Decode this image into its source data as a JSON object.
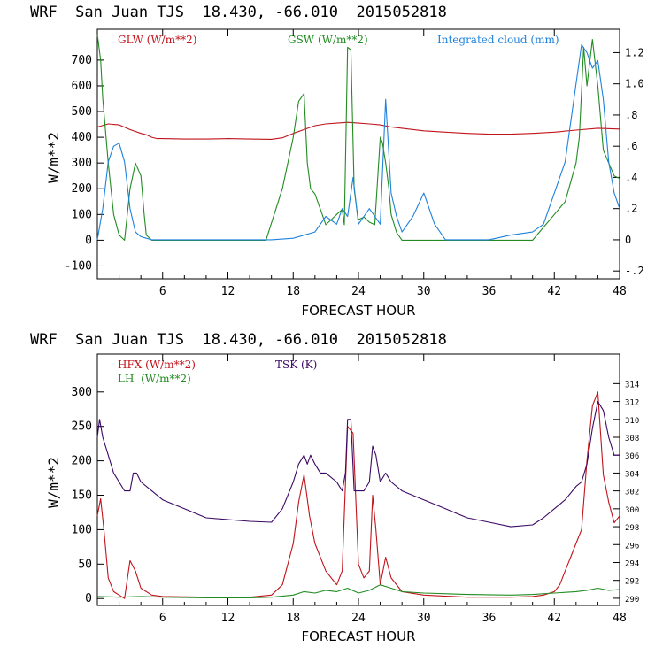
{
  "chart_data": [
    {
      "type": "line",
      "title": "WRF  San Juan TJS  18.430, -66.010  2015052818",
      "xlabel": "FORECAST HOUR",
      "ylabel": "W/m**2",
      "y2label": "Integrated cloud (mm)",
      "xlim": [
        0,
        48
      ],
      "ylim": [
        -150,
        820
      ],
      "y2lim": [
        -0.25,
        1.35
      ],
      "xticks": [
        "6",
        "12",
        "18",
        "24",
        "30",
        "36",
        "42",
        "48"
      ],
      "yticks": [
        "-100",
        "0",
        "100",
        "200",
        "300",
        "400",
        "500",
        "600",
        "700"
      ],
      "y2ticks": [
        "-.2",
        "0",
        ".2",
        ".4",
        ".6",
        ".8",
        "1.0",
        "1.2"
      ],
      "colors": {
        "glw": "#c0141c",
        "gsw": "#228B22",
        "cloud": "#1e82dc",
        "frame": "#000000"
      },
      "series": [
        {
          "name": "GLW (W/m**2)",
          "axis": "left",
          "x": [
            0,
            1,
            2,
            3,
            4,
            4.5,
            5,
            5.5,
            6,
            8,
            10,
            12,
            14,
            16,
            17,
            18,
            19,
            20,
            21,
            22,
            23,
            24,
            25,
            26,
            27,
            28,
            30,
            32,
            34,
            36,
            38,
            40,
            42,
            44,
            46,
            48
          ],
          "values": [
            440,
            452,
            448,
            430,
            415,
            410,
            400,
            395,
            395,
            393,
            393,
            395,
            393,
            392,
            398,
            415,
            430,
            445,
            452,
            455,
            458,
            455,
            452,
            448,
            440,
            435,
            425,
            420,
            415,
            412,
            412,
            415,
            420,
            428,
            435,
            432
          ]
        },
        {
          "name": "GSW (W/m**2)",
          "axis": "left",
          "x": [
            0,
            0.3,
            0.5,
            1,
            1.5,
            2,
            2.5,
            3,
            3.5,
            4,
            4.3,
            4.5,
            5,
            6,
            10,
            14,
            15.5,
            17,
            18,
            18.5,
            19,
            19.3,
            19.6,
            20,
            20.5,
            21,
            21.5,
            22,
            22.5,
            22.7,
            23,
            23.3,
            23.6,
            23.9,
            24,
            24.5,
            25,
            25.5,
            26,
            26.2,
            26.5,
            26.8,
            27,
            27.5,
            28,
            30,
            34,
            38,
            40,
            41,
            42,
            43,
            44,
            44.3,
            44.7,
            45,
            45.5,
            46,
            46.5,
            47,
            47.5,
            48
          ],
          "values": [
            800,
            700,
            550,
            300,
            100,
            20,
            0,
            200,
            300,
            250,
            100,
            20,
            0,
            0,
            0,
            0,
            0,
            200,
            400,
            540,
            570,
            300,
            200,
            180,
            120,
            60,
            80,
            100,
            120,
            60,
            750,
            740,
            200,
            100,
            80,
            90,
            70,
            60,
            400,
            380,
            300,
            200,
            100,
            30,
            0,
            0,
            0,
            0,
            0,
            50,
            100,
            150,
            300,
            400,
            750,
            600,
            780,
            600,
            350,
            300,
            250,
            240
          ]
        },
        {
          "name": "Integrated cloud (mm)",
          "axis": "right",
          "x": [
            0,
            0.5,
            1,
            1.5,
            2,
            2.5,
            3,
            3.5,
            4,
            4.5,
            5,
            6,
            10,
            14,
            16,
            18,
            20,
            21,
            22,
            22.5,
            23,
            23.5,
            24,
            25,
            26,
            26.5,
            27,
            27.5,
            28,
            29,
            30,
            31,
            32,
            34,
            36,
            38,
            40,
            41,
            42,
            43,
            44,
            44.5,
            45,
            45.5,
            46,
            46.5,
            47,
            47.5,
            48
          ],
          "values": [
            0,
            0.2,
            0.5,
            0.6,
            0.62,
            0.5,
            0.2,
            0.05,
            0.02,
            0.01,
            0,
            0,
            0,
            0,
            0,
            0.01,
            0.05,
            0.15,
            0.1,
            0.2,
            0.15,
            0.4,
            0.1,
            0.2,
            0.1,
            0.9,
            0.3,
            0.15,
            0.05,
            0.15,
            0.3,
            0.1,
            0,
            0,
            0,
            0.03,
            0.05,
            0.1,
            0.3,
            0.5,
            1.0,
            1.25,
            1.2,
            1.1,
            1.15,
            0.9,
            0.5,
            0.3,
            0.2
          ]
        }
      ]
    },
    {
      "type": "line",
      "title": "WRF  San Juan TJS  18.430, -66.010  2015052818",
      "xlabel": "FORECAST HOUR",
      "ylabel": "W/m**2",
      "y2label": "TSK (K)",
      "xlim": [
        0,
        48
      ],
      "ylim": [
        -10,
        355
      ],
      "y2lim": [
        289.2,
        317.3
      ],
      "xticks": [
        "6",
        "12",
        "18",
        "24",
        "30",
        "36",
        "42",
        "48"
      ],
      "yticks": [
        "0",
        "50",
        "100",
        "150",
        "200",
        "250",
        "300"
      ],
      "y2ticks": [
        "290",
        "292",
        "294",
        "296",
        "298",
        "300",
        "302",
        "304",
        "306",
        "308",
        "310",
        "312",
        "314"
      ],
      "colors": {
        "hfx": "#c0141c",
        "lh": "#228B22",
        "tsk": "#3c0a64",
        "frame": "#000000"
      },
      "series": [
        {
          "name": "HFX (W/m**2)",
          "axis": "left",
          "x": [
            0,
            0.3,
            0.6,
            1,
            1.5,
            2,
            2.5,
            3,
            3.5,
            4,
            5,
            6,
            10,
            14,
            16,
            17,
            18,
            18.5,
            19,
            19.5,
            20,
            21,
            22,
            22.5,
            23,
            23.5,
            24,
            24.5,
            25,
            25.3,
            25.6,
            26,
            26.5,
            27,
            28,
            30,
            34,
            38,
            40,
            41,
            42,
            42.5,
            43,
            43.5,
            44,
            44.5,
            45,
            45.5,
            46,
            46.5,
            47,
            47.5,
            48
          ],
          "values": [
            120,
            145,
            100,
            30,
            10,
            5,
            0,
            55,
            40,
            15,
            5,
            3,
            2,
            2,
            5,
            20,
            80,
            140,
            180,
            120,
            80,
            40,
            20,
            40,
            250,
            240,
            50,
            30,
            40,
            150,
            100,
            20,
            60,
            30,
            10,
            5,
            2,
            2,
            3,
            5,
            10,
            20,
            40,
            60,
            80,
            100,
            200,
            280,
            300,
            180,
            140,
            110,
            120
          ]
        },
        {
          "name": "LH  (W/m**2)",
          "axis": "left",
          "x": [
            0,
            2,
            4,
            6,
            10,
            14,
            16,
            18,
            19,
            20,
            21,
            22,
            23,
            24,
            25,
            26,
            27,
            28,
            30,
            34,
            38,
            40,
            42,
            44,
            45,
            46,
            47,
            48
          ],
          "values": [
            3,
            2,
            3,
            2,
            1,
            1,
            2,
            5,
            10,
            8,
            12,
            10,
            15,
            8,
            12,
            20,
            15,
            10,
            8,
            6,
            5,
            6,
            8,
            10,
            12,
            15,
            12,
            13
          ]
        },
        {
          "name": "TSK (K)",
          "axis": "right",
          "x": [
            0,
            0.2,
            0.5,
            1,
            1.5,
            2,
            2.5,
            3,
            3.3,
            3.6,
            4,
            5,
            6,
            8,
            10,
            12,
            14,
            16,
            17,
            18,
            18.5,
            19,
            19.3,
            19.6,
            20,
            20.5,
            21,
            22,
            22.5,
            22.8,
            23,
            23.3,
            23.6,
            24,
            24.5,
            25,
            25.3,
            25.6,
            26,
            26.5,
            27,
            28,
            30,
            32,
            34,
            36,
            38,
            40,
            41,
            42,
            43,
            44,
            44.5,
            45,
            45.5,
            46,
            46.5,
            47,
            47.5,
            48
          ],
          "values": [
            308,
            310,
            308,
            306,
            304,
            303,
            302,
            302,
            304,
            304,
            303,
            302,
            301,
            300,
            299,
            298.8,
            298.6,
            298.5,
            300,
            303,
            305,
            306,
            305,
            306,
            305,
            304,
            304,
            303,
            302,
            304,
            310,
            310,
            302,
            302,
            302,
            303,
            307,
            306,
            303,
            304,
            303,
            302,
            301,
            300,
            299,
            298.5,
            298,
            298.2,
            299,
            300,
            301,
            302.5,
            303,
            305,
            309,
            312,
            311,
            308,
            306,
            306
          ]
        }
      ]
    }
  ]
}
